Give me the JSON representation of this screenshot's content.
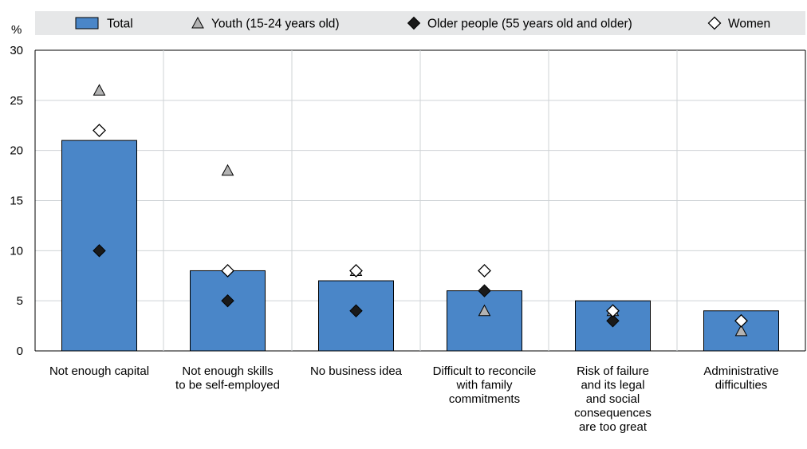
{
  "chart_data": {
    "type": "bar",
    "unit": "%",
    "ylim": [
      0,
      30
    ],
    "yticks": [
      0,
      5,
      10,
      15,
      20,
      25,
      30
    ],
    "grid": true,
    "legend_position": "top",
    "categories": [
      [
        "Not enough capital"
      ],
      [
        "Not enough skills",
        "to be self-employed"
      ],
      [
        "No business idea"
      ],
      [
        "Difficult to reconcile",
        "with family",
        "commitments"
      ],
      [
        "Risk of failure",
        "and its legal",
        "and social",
        "consequences",
        "are too great"
      ],
      [
        "Administrative",
        "difficulties"
      ]
    ],
    "series": [
      {
        "name": "Total",
        "marker": "bar",
        "color": "#4a86c8",
        "values": [
          21,
          8,
          7,
          6,
          5,
          4
        ]
      },
      {
        "name": "Youth (15-24 years old)",
        "marker": "triangle",
        "color": "#b3b3b3",
        "values": [
          26,
          18,
          8,
          4,
          4,
          2
        ]
      },
      {
        "name": "Older people (55 years old and older)",
        "marker": "diamond-filled",
        "color": "#1a1a1a",
        "values": [
          10,
          5,
          4,
          6,
          3,
          3
        ]
      },
      {
        "name": "Women",
        "marker": "diamond-open",
        "color": "#ffffff",
        "values": [
          22,
          8,
          8,
          8,
          4,
          3
        ]
      }
    ]
  }
}
